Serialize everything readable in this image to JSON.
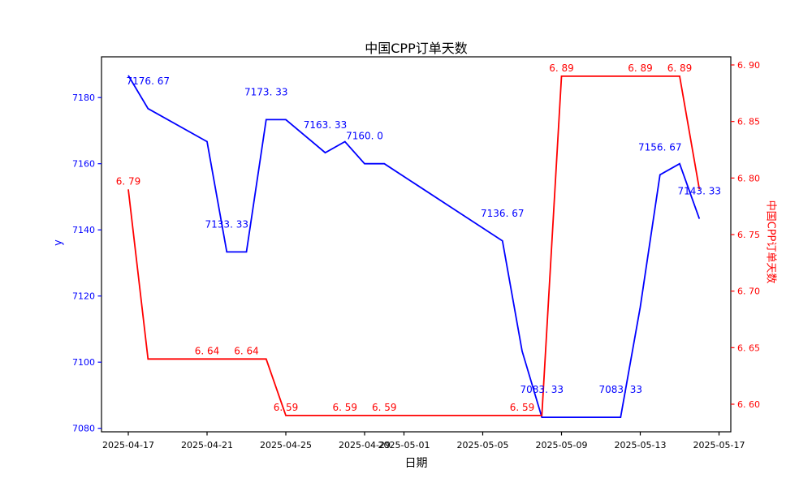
{
  "chart_data": {
    "type": "line",
    "title": "中国CPP订单天数",
    "xlabel": "日期",
    "ylabel": "y",
    "ylabel_right": "中国CPP订单天数",
    "grid": false,
    "legend_position": "none",
    "background": "#ffffff",
    "frame_color": "#000000",
    "x": [
      "2025-04-17",
      "2025-04-18",
      "2025-04-21",
      "2025-04-22",
      "2025-04-23",
      "2025-04-24",
      "2025-04-25",
      "2025-04-27",
      "2025-04-28",
      "2025-04-29",
      "2025-04-30",
      "2025-05-06",
      "2025-05-07",
      "2025-05-08",
      "2025-05-09",
      "2025-05-12",
      "2025-05-13",
      "2025-05-14",
      "2025-05-15",
      "2025-05-16"
    ],
    "x_day_offsets": [
      0,
      1,
      4,
      5,
      6,
      7,
      8,
      10,
      11,
      12,
      13,
      19,
      20,
      21,
      22,
      25,
      26,
      27,
      28,
      29
    ],
    "x_ticks": {
      "labels": [
        "2025-04-17",
        "2025-04-21",
        "2025-04-25",
        "2025-04-29",
        "2025-05-01",
        "2025-05-05",
        "2025-05-09",
        "2025-05-13",
        "2025-05-17"
      ],
      "day_offsets": [
        0,
        4,
        8,
        12,
        14,
        18,
        22,
        26,
        30
      ]
    },
    "y_axis_left": {
      "color": "#0000ff",
      "ticks": [
        7080,
        7100,
        7120,
        7140,
        7160,
        7180
      ],
      "tick_labels": [
        "7080",
        "7100",
        "7120",
        "7140",
        "7160",
        "7180"
      ],
      "range": [
        7078.9,
        7192.3
      ]
    },
    "y_axis_right": {
      "color": "#ff0000",
      "ticks": [
        6.6,
        6.65,
        6.7,
        6.75,
        6.8,
        6.85,
        6.9
      ],
      "tick_labels": [
        "6. 60",
        "6. 65",
        "6. 70",
        "6. 75",
        "6. 80",
        "6. 85",
        "6. 90"
      ],
      "range": [
        6.576,
        6.907
      ]
    },
    "series": [
      {
        "name": "y",
        "axis": "left",
        "color": "#0000ff",
        "values": [
          7186.67,
          7176.67,
          7166.67,
          7133.33,
          7133.33,
          7173.33,
          7173.33,
          7163.33,
          7166.67,
          7160.0,
          7160.0,
          7136.67,
          7103.33,
          7083.33,
          7083.33,
          7083.33,
          7116.67,
          7156.67,
          7160.0,
          7143.33
        ],
        "point_labels": [
          null,
          "7176. 67",
          null,
          "7133. 33",
          null,
          "7173. 33",
          null,
          "7163. 33",
          null,
          "7160. 0",
          null,
          "7136. 67",
          null,
          "7083. 33",
          null,
          "7083. 33",
          null,
          "7156. 67",
          null,
          "7143. 33"
        ]
      },
      {
        "name": "中国CPP订单天数",
        "axis": "right",
        "color": "#ff0000",
        "values": [
          6.79,
          6.64,
          6.64,
          6.64,
          6.64,
          6.64,
          6.59,
          6.59,
          6.59,
          6.59,
          6.59,
          6.59,
          6.59,
          6.59,
          6.89,
          6.89,
          6.89,
          6.89,
          6.89,
          6.79
        ],
        "point_labels": [
          "6. 79",
          null,
          "6. 64",
          null,
          "6. 64",
          null,
          "6. 59",
          null,
          "6. 59",
          null,
          "6. 59",
          null,
          "6. 59",
          null,
          "6. 89",
          null,
          "6. 89",
          null,
          "6. 89",
          null
        ]
      }
    ]
  }
}
